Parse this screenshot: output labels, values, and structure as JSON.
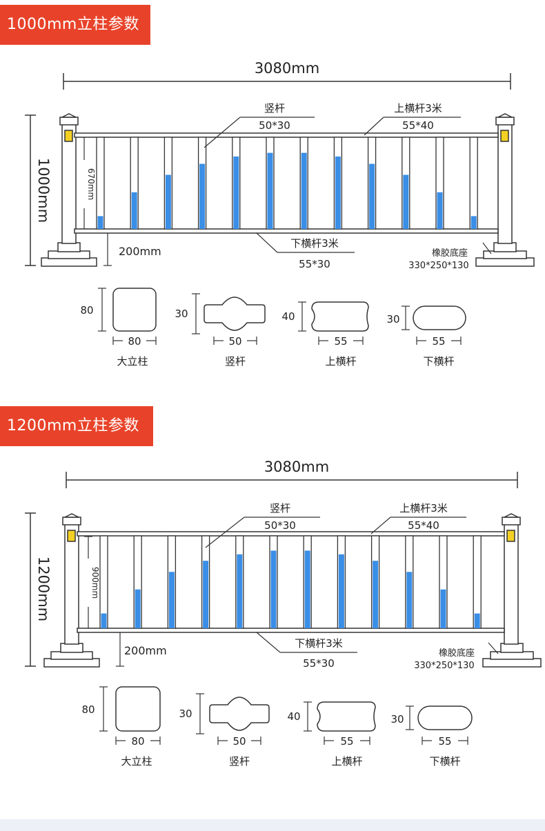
{
  "sections": [
    {
      "badge": "1000mm立柱参数",
      "width_label": "3080mm",
      "height_label": "1000mm",
      "inner_label": "670mm",
      "gap_label": "200mm",
      "vertical_bar": {
        "name": "竖杆",
        "size": "50*30"
      },
      "top_rail": {
        "name": "上横杆3米",
        "size": "55*40"
      },
      "bottom_rail": {
        "name": "下横杆3米",
        "size": "55*30"
      },
      "base": {
        "name": "橡胶底座",
        "size": "330*250*130"
      },
      "blue_fill_fractions": [
        0.14,
        0.4,
        0.59,
        0.71,
        0.79,
        0.83,
        0.83,
        0.79,
        0.71,
        0.59,
        0.4,
        0.14
      ],
      "profiles": [
        {
          "caption": "大立柱",
          "height": "80",
          "width": "80"
        },
        {
          "caption": "竖杆",
          "height": "30",
          "width": "50"
        },
        {
          "caption": "上横杆",
          "height": "40",
          "width": "55"
        },
        {
          "caption": "下横杆",
          "height": "30",
          "width": "55"
        }
      ]
    },
    {
      "badge": "1200mm立柱参数",
      "width_label": "3080mm",
      "height_label": "1200mm",
      "inner_label": "900mm",
      "gap_label": "200mm",
      "vertical_bar": {
        "name": "竖杆",
        "size": "50*30"
      },
      "top_rail": {
        "name": "上横杆3米",
        "size": "55*40"
      },
      "bottom_rail": {
        "name": "下横杆3米",
        "size": "55*30"
      },
      "base": {
        "name": "橡胶底座",
        "size": "330*250*130"
      },
      "blue_fill_fractions": [
        0.16,
        0.42,
        0.61,
        0.73,
        0.8,
        0.84,
        0.84,
        0.8,
        0.73,
        0.61,
        0.42,
        0.16
      ],
      "profiles": [
        {
          "caption": "大立柱",
          "height": "80",
          "width": "80"
        },
        {
          "caption": "竖杆",
          "height": "30",
          "width": "50"
        },
        {
          "caption": "上横杆",
          "height": "40",
          "width": "55"
        },
        {
          "caption": "下横杆",
          "height": "30",
          "width": "55"
        }
      ]
    }
  ],
  "colors": {
    "badge": "#e8432a",
    "blue": "#3a8ee6",
    "line": "#333333",
    "yellow": "#f4d024"
  }
}
